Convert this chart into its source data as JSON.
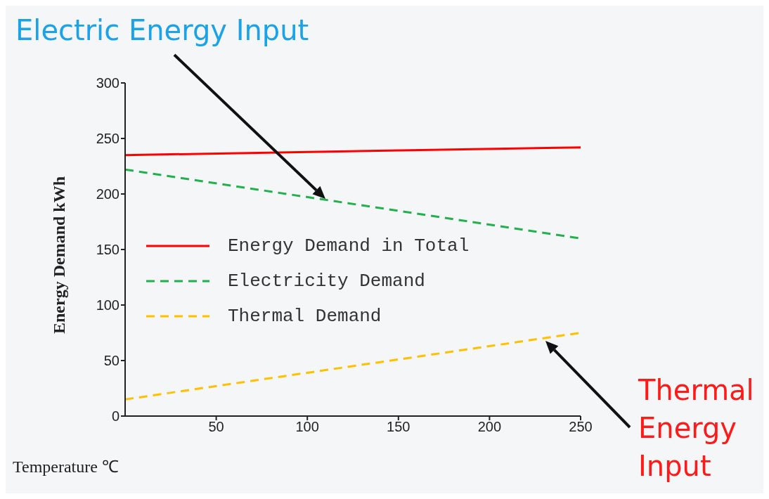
{
  "chart_data": {
    "type": "line",
    "xlabel": "Temperature    ℃",
    "ylabel": "Energy Demand    kWh",
    "x": [
      0,
      250
    ],
    "series": [
      {
        "name": "Energy Demand in Total",
        "color": "#ff0000",
        "values": [
          235,
          242
        ],
        "line_style": "solid"
      },
      {
        "name": "Electricity Demand",
        "color": "#22b14c",
        "values": [
          222,
          160
        ],
        "line_style": "dashed"
      },
      {
        "name": "Thermal Demand",
        "color": "#ffc000",
        "values": [
          15,
          75
        ],
        "line_style": "dashed"
      }
    ],
    "xlim": [
      0,
      250
    ],
    "xticks": [
      50,
      100,
      150,
      200,
      250
    ],
    "ylim": [
      0,
      300
    ],
    "yticks": [
      0,
      50,
      100,
      150,
      200,
      250,
      300
    ],
    "legend": "left",
    "marker": "none",
    "annotations": [
      "Electric Energy Input",
      "Thermal Energy Input"
    ]
  }
}
